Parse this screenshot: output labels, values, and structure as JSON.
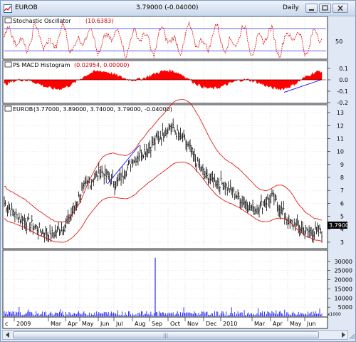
{
  "window": {
    "symbol": "EUROB",
    "quote": "3.79000 (-0.04000)",
    "period": "Daily"
  },
  "panels": {
    "stochastic": {
      "label": "Stochastic Oscillator",
      "value": "(10.6383)",
      "tick": "50"
    },
    "macd": {
      "label": "PS MACD Histogram",
      "value": "(0.02954, 0.00000)",
      "ticks": [
        "0.1",
        "0.0",
        "-0.1",
        "-0.2"
      ]
    },
    "price": {
      "label": "EUROB",
      "value": "(3.77000, 3.89000, 3.74000, 3.79000, -0.04000)",
      "last": "3.7900"
    },
    "volume": {
      "multiplier": "x1000"
    }
  },
  "colors": {
    "price_bars": "#000000",
    "bands": "#e00000",
    "stoch_line": "#e00000",
    "stoch_ref": "#0000ff",
    "macd": "#ff0000",
    "trendline": "#0000ff",
    "volume": "#0000ff"
  },
  "chart_data": [
    {
      "type": "line",
      "name": "stochastic",
      "ylim": [
        0,
        100
      ],
      "yticks": [
        50
      ],
      "reference_lines": [
        20,
        80
      ]
    },
    {
      "type": "area",
      "name": "macd_histogram",
      "ylim": [
        -0.2,
        0.15
      ],
      "yticks": [
        0.1,
        0.0,
        -0.1,
        -0.2
      ]
    },
    {
      "type": "bar",
      "name": "price",
      "ylim": [
        2.5,
        13.5
      ],
      "yticks": [
        3,
        4,
        5,
        6,
        7,
        8,
        9,
        10,
        11,
        12,
        13
      ],
      "x": [
        "c",
        "2009",
        "Mar",
        "Apr",
        "May",
        "Jun",
        "Jul",
        "Aug",
        "Sep",
        "Oct",
        "Nov",
        "Dec",
        "2010",
        "Mar",
        "Apr",
        "May",
        "Jun"
      ],
      "approx_close_by_label": [
        6.0,
        5.0,
        3.5,
        4.5,
        7.0,
        8.5,
        7.5,
        9.5,
        10.5,
        12.0,
        10.5,
        8.0,
        7.5,
        5.5,
        6.5,
        4.5,
        3.8
      ],
      "last_close": 3.79
    },
    {
      "type": "bar",
      "name": "volume",
      "ylim": [
        0,
        35000
      ],
      "yticks": [
        5000,
        10000,
        15000,
        20000,
        25000,
        30000
      ],
      "unit": "x1000",
      "spike": {
        "x": "Sep",
        "value": 32000
      }
    }
  ]
}
